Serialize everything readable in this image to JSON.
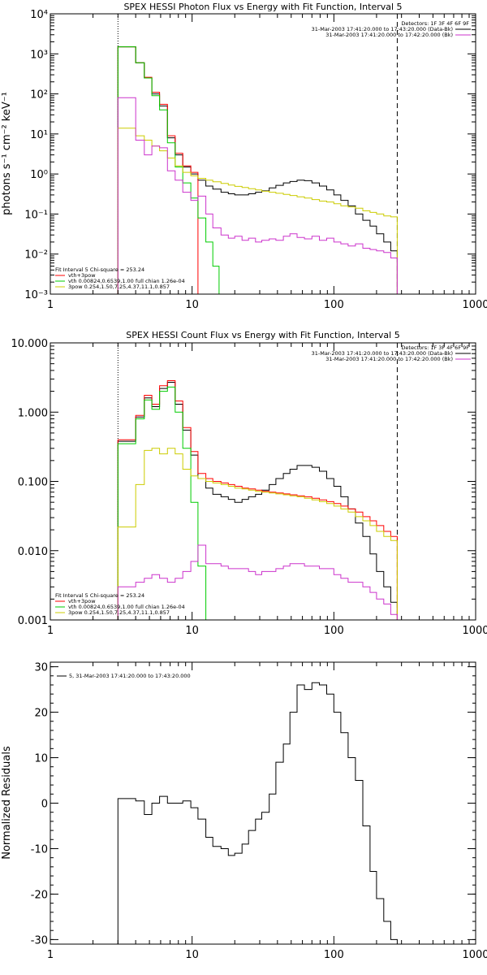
{
  "figure": {
    "background": "#ffffff",
    "axis_color": "#000000"
  },
  "chart_data": [
    {
      "type": "line",
      "title": "SPEX HESSI Photon Flux vs Energy with Fit Function, Interval 5",
      "xlabel": "",
      "ylabel": "photons s⁻¹ cm⁻² keV⁻¹",
      "xscale": "log",
      "yscale": "log",
      "xlim": [
        1,
        1000
      ],
      "ylim": [
        0.001,
        10000
      ],
      "xticks": [
        1,
        10,
        100,
        1000
      ],
      "xtick_labels": [
        "1",
        "10",
        "100",
        "1000"
      ],
      "yticks": [
        0.001,
        0.01,
        0.1,
        1,
        10,
        100,
        1000,
        10000
      ],
      "ytick_labels": [
        "10⁻³",
        "10⁻²",
        "10⁻¹",
        "10⁰",
        "10¹",
        "10²",
        "10³",
        "10⁴"
      ],
      "vlines": [
        {
          "x": 3,
          "style": "dotted",
          "color": "#000000"
        },
        {
          "x": 280,
          "style": "dashed",
          "color": "#000000"
        }
      ],
      "top_legend": {
        "placement": "top-right",
        "lines": [
          {
            "text": "Detectors: 1F 3F 4F 6F 9F",
            "color": null
          },
          {
            "text": "31-Mar-2003 17:41:20.000 to 17:43:20.000 (Data-Bk)",
            "color": "#000000"
          },
          {
            "text": "31-Mar-2003 17:41:20.000 to 17:42:20.000 (Bk)",
            "color": "#cc33cc"
          }
        ]
      },
      "fit_legend": {
        "placement": "bottom-left",
        "lines": [
          {
            "text": "Fit Interval 5   Chi-square = 253.24",
            "color": null
          },
          {
            "text": "vth+3pow",
            "color": "#ff0000"
          },
          {
            "text": "vth 0.00824,0.6539,1.00  full chian 1.26e-04",
            "color": "#00cc00"
          },
          {
            "text": "3pow 0.254,1.50,7.25,4.37,11.1,0.857",
            "color": "#cccc00"
          }
        ]
      },
      "series": [
        {
          "color": "#000000",
          "edges": [
            3,
            3.5,
            4,
            4.6,
            5.2,
            5.9,
            6.7,
            7.6,
            8.6,
            9.8,
            11,
            12.5,
            14,
            16,
            18,
            20,
            22.5,
            25,
            28,
            31,
            35,
            39,
            44,
            49,
            55,
            62,
            70,
            79,
            89,
            100,
            112,
            126,
            142,
            160,
            180,
            200,
            225,
            252,
            280
          ],
          "values": [
            1500,
            1500,
            600,
            250,
            100,
            50,
            8,
            3,
            1.5,
            1.0,
            0.7,
            0.5,
            0.42,
            0.35,
            0.32,
            0.3,
            0.3,
            0.32,
            0.35,
            0.38,
            0.45,
            0.52,
            0.6,
            0.65,
            0.7,
            0.68,
            0.6,
            0.5,
            0.4,
            0.3,
            0.22,
            0.16,
            0.1,
            0.07,
            0.05,
            0.032,
            0.02,
            0.012
          ]
        },
        {
          "color": "#ff0000",
          "edges": [
            3,
            3.5,
            4,
            4.6,
            5.2,
            5.9,
            6.7,
            7.6,
            8.6,
            9.8,
            11
          ],
          "values": [
            1500,
            1500,
            600,
            260,
            110,
            55,
            9,
            3.3,
            1.6,
            1.1
          ]
        },
        {
          "color": "#00cc00",
          "edges": [
            3,
            3.5,
            4,
            4.6,
            5.2,
            5.9,
            6.7,
            7.6,
            8.6,
            9.8,
            11,
            12.5,
            14,
            15.5
          ],
          "values": [
            1500,
            1500,
            600,
            250,
            90,
            40,
            6,
            1.5,
            0.6,
            0.25,
            0.08,
            0.02,
            0.005
          ]
        },
        {
          "color": "#cccc00",
          "edges": [
            3,
            3.5,
            4,
            4.6,
            5.2,
            5.9,
            6.7,
            7.6,
            8.6,
            9.8,
            11,
            12.5,
            14,
            16,
            18,
            20,
            22.5,
            25,
            28,
            31,
            35,
            39,
            44,
            49,
            55,
            62,
            70,
            79,
            89,
            100,
            112,
            126,
            142,
            160,
            180,
            200,
            225,
            252,
            280
          ],
          "values": [
            14,
            14,
            9,
            7,
            5,
            3.8,
            2.5,
            1.6,
            1.1,
            0.9,
            0.78,
            0.7,
            0.64,
            0.58,
            0.53,
            0.49,
            0.46,
            0.43,
            0.4,
            0.37,
            0.35,
            0.33,
            0.31,
            0.29,
            0.27,
            0.25,
            0.23,
            0.21,
            0.2,
            0.18,
            0.16,
            0.15,
            0.14,
            0.12,
            0.11,
            0.1,
            0.09,
            0.085
          ]
        },
        {
          "color": "#cc33cc",
          "edges": [
            3,
            3.5,
            4,
            4.6,
            5.2,
            5.9,
            6.7,
            7.6,
            8.6,
            9.8,
            11,
            12.5,
            14,
            16,
            18,
            20,
            22.5,
            25,
            28,
            31,
            35,
            39,
            44,
            49,
            55,
            62,
            70,
            79,
            89,
            100,
            112,
            126,
            142,
            160,
            180,
            200,
            225,
            252,
            280
          ],
          "values": [
            80,
            80,
            7,
            3,
            5,
            4.5,
            1.2,
            0.7,
            0.35,
            0.22,
            0.28,
            0.1,
            0.045,
            0.03,
            0.025,
            0.028,
            0.022,
            0.025,
            0.02,
            0.022,
            0.024,
            0.022,
            0.028,
            0.032,
            0.026,
            0.024,
            0.028,
            0.022,
            0.025,
            0.02,
            0.018,
            0.016,
            0.018,
            0.014,
            0.013,
            0.012,
            0.011,
            0.008
          ]
        }
      ]
    },
    {
      "type": "line",
      "title": "SPEX HESSI Count Flux vs Energy with Fit Function, Interval 5",
      "xlabel": "",
      "ylabel": "",
      "xscale": "log",
      "yscale": "log",
      "xlim": [
        1,
        1000
      ],
      "ylim": [
        0.001,
        10
      ],
      "xticks": [
        1,
        10,
        100,
        1000
      ],
      "xtick_labels": [
        "1",
        "10",
        "100",
        "1000"
      ],
      "yticks": [
        0.001,
        0.01,
        0.1,
        1,
        10
      ],
      "ytick_labels": [
        "0.001",
        "0.010",
        "0.100",
        "1.000",
        "10.000"
      ],
      "vlines": [
        {
          "x": 3,
          "style": "dotted",
          "color": "#000000"
        },
        {
          "x": 280,
          "style": "dashed",
          "color": "#000000"
        }
      ],
      "top_legend": {
        "placement": "top-right",
        "lines": [
          {
            "text": "Detectors: 1F 3F 4F 6F 9F",
            "color": null
          },
          {
            "text": "31-Mar-2003 17:41:20.000 to 17:43:20.000 (Data-Bk)",
            "color": "#000000"
          },
          {
            "text": "31-Mar-2003 17:41:20.000 to 17:42:20.000 (Bk)",
            "color": "#cc33cc"
          }
        ]
      },
      "fit_legend": {
        "placement": "bottom-left",
        "lines": [
          {
            "text": "Fit Interval 5   Chi-square = 253.24",
            "color": null
          },
          {
            "text": "vth+3pow",
            "color": "#ff0000"
          },
          {
            "text": "vth 0.00824,0.6539,1.00  full chian 1.26e-04",
            "color": "#00cc00"
          },
          {
            "text": "3pow 0.254,1.50,7.25,4.37,11.1,0.857",
            "color": "#cccc00"
          }
        ]
      },
      "series": [
        {
          "color": "#000000",
          "edges": [
            3,
            3.5,
            4,
            4.6,
            5.2,
            5.9,
            6.7,
            7.6,
            8.6,
            9.8,
            11,
            12.5,
            14,
            16,
            18,
            20,
            22.5,
            25,
            28,
            31,
            35,
            39,
            44,
            49,
            55,
            62,
            70,
            79,
            89,
            100,
            112,
            126,
            142,
            160,
            180,
            200,
            225,
            252,
            280
          ],
          "values": [
            0.38,
            0.38,
            0.85,
            1.6,
            1.2,
            2.2,
            2.7,
            1.3,
            0.55,
            0.24,
            0.11,
            0.08,
            0.065,
            0.06,
            0.055,
            0.05,
            0.055,
            0.06,
            0.065,
            0.075,
            0.09,
            0.11,
            0.13,
            0.15,
            0.17,
            0.17,
            0.16,
            0.14,
            0.11,
            0.085,
            0.06,
            0.04,
            0.025,
            0.016,
            0.009,
            0.005,
            0.003,
            0.0018
          ]
        },
        {
          "color": "#ff0000",
          "edges": [
            3,
            3.5,
            4,
            4.6,
            5.2,
            5.9,
            6.7,
            7.6,
            8.6,
            9.8,
            11,
            12.5,
            14,
            16,
            18,
            20,
            22.5,
            25,
            28,
            31,
            35,
            39,
            44,
            49,
            55,
            62,
            70,
            79,
            89,
            100,
            112,
            126,
            142,
            160,
            180,
            200,
            225,
            252,
            280
          ],
          "values": [
            0.4,
            0.4,
            0.9,
            1.75,
            1.3,
            2.4,
            2.85,
            1.45,
            0.6,
            0.27,
            0.13,
            0.11,
            0.1,
            0.095,
            0.09,
            0.085,
            0.08,
            0.078,
            0.075,
            0.072,
            0.07,
            0.068,
            0.066,
            0.064,
            0.062,
            0.06,
            0.057,
            0.054,
            0.051,
            0.048,
            0.044,
            0.04,
            0.036,
            0.031,
            0.027,
            0.023,
            0.019,
            0.016
          ]
        },
        {
          "color": "#00cc00",
          "edges": [
            3,
            3.5,
            4,
            4.6,
            5.2,
            5.9,
            6.7,
            7.6,
            8.6,
            9.8,
            11,
            12.5,
            14
          ],
          "values": [
            0.35,
            0.35,
            0.8,
            1.5,
            1.1,
            2.0,
            2.3,
            1.0,
            0.3,
            0.05,
            0.006,
            0.0008
          ]
        },
        {
          "color": "#cccc00",
          "edges": [
            3,
            3.5,
            4,
            4.6,
            5.2,
            5.9,
            6.7,
            7.6,
            8.6,
            9.8,
            11,
            12.5,
            14,
            16,
            18,
            20,
            22.5,
            25,
            28,
            31,
            35,
            39,
            44,
            49,
            55,
            62,
            70,
            79,
            89,
            100,
            112,
            126,
            142,
            160,
            180,
            200,
            225,
            252,
            280
          ],
          "values": [
            0.022,
            0.022,
            0.09,
            0.28,
            0.3,
            0.25,
            0.3,
            0.25,
            0.15,
            0.12,
            0.11,
            0.1,
            0.095,
            0.09,
            0.085,
            0.08,
            0.078,
            0.075,
            0.072,
            0.07,
            0.068,
            0.066,
            0.064,
            0.062,
            0.06,
            0.057,
            0.054,
            0.051,
            0.048,
            0.044,
            0.04,
            0.036,
            0.031,
            0.027,
            0.023,
            0.019,
            0.016,
            0.014
          ]
        },
        {
          "color": "#cc33cc",
          "edges": [
            3,
            3.5,
            4,
            4.6,
            5.2,
            5.9,
            6.7,
            7.6,
            8.6,
            9.8,
            11,
            12.5,
            14,
            16,
            18,
            20,
            22.5,
            25,
            28,
            31,
            35,
            39,
            44,
            49,
            55,
            62,
            70,
            79,
            89,
            100,
            112,
            126,
            142,
            160,
            180,
            200,
            225,
            252,
            280
          ],
          "values": [
            0.003,
            0.003,
            0.0035,
            0.004,
            0.0045,
            0.004,
            0.0035,
            0.004,
            0.005,
            0.007,
            0.012,
            0.0065,
            0.0065,
            0.006,
            0.0055,
            0.0055,
            0.0055,
            0.005,
            0.0045,
            0.005,
            0.005,
            0.0055,
            0.006,
            0.0065,
            0.0065,
            0.006,
            0.006,
            0.0055,
            0.0055,
            0.0045,
            0.004,
            0.0035,
            0.0035,
            0.003,
            0.0025,
            0.002,
            0.0017,
            0.0012
          ]
        }
      ]
    },
    {
      "type": "line",
      "title": "",
      "xlabel": "",
      "ylabel": "Normalized Residuals",
      "xscale": "log",
      "yscale": "linear",
      "xlim": [
        1,
        1000
      ],
      "ylim": [
        -31,
        31
      ],
      "xticks": [
        1,
        10,
        100,
        1000
      ],
      "xtick_labels": [
        "1",
        "10",
        "100",
        "1000"
      ],
      "yticks": [
        -30,
        -20,
        -10,
        0,
        10,
        20,
        30
      ],
      "ytick_labels": [
        "-30",
        "-20",
        "-10",
        "0",
        "10",
        "20",
        "30"
      ],
      "vlines": [],
      "top_legend": {
        "placement": "top-left",
        "lines": [
          {
            "text": "5, 31-Mar-2003 17:41:20.000 to 17:43:20.000",
            "color": "#000000"
          }
        ]
      },
      "series": [
        {
          "color": "#000000",
          "start_drop": -31,
          "edges": [
            3,
            3.5,
            4,
            4.6,
            5.2,
            5.9,
            6.7,
            7.6,
            8.6,
            9.8,
            11,
            12.5,
            14,
            16,
            18,
            20,
            22.5,
            25,
            28,
            31,
            35,
            39,
            44,
            49,
            55,
            62,
            70,
            79,
            89,
            100,
            112,
            126,
            142,
            160,
            180,
            200,
            225,
            252,
            280
          ],
          "values": [
            1,
            1,
            0.5,
            -2.5,
            0,
            1.5,
            0,
            0,
            0.5,
            -1,
            -3.5,
            -7.5,
            -9.5,
            -10,
            -11.5,
            -11,
            -9,
            -6,
            -3.5,
            -2,
            2,
            9,
            13,
            20,
            26,
            25,
            26.5,
            26,
            24,
            20,
            15.5,
            10,
            5,
            -5,
            -15,
            -21,
            -26,
            -30
          ]
        }
      ]
    }
  ]
}
